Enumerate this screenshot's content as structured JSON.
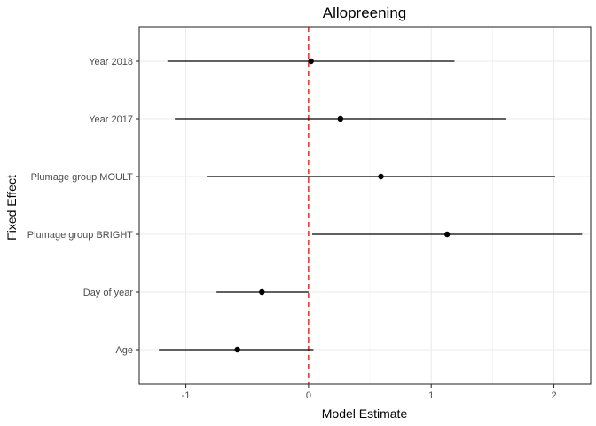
{
  "chart_data": {
    "type": "scatter",
    "title": "Allopreening",
    "xlabel": "Model Estimate",
    "ylabel": "Fixed Effect",
    "xlim": [
      -1.38,
      2.3
    ],
    "x_ticks": [
      -1,
      0,
      1,
      2
    ],
    "x_tick_labels": [
      "-1",
      "0",
      "1",
      "2"
    ],
    "reference_line": {
      "x": 0,
      "color": "#ff0000",
      "style": "dashed"
    },
    "grid": true,
    "legend": "none",
    "categories": [
      "Year 2018",
      "Year 2017",
      "Plumage group MOULT",
      "Plumage group BRIGHT",
      "Day of year",
      "Age"
    ],
    "series": [
      {
        "estimates": [
          0.02,
          0.26,
          0.59,
          1.13,
          -0.38,
          -0.58
        ],
        "lower": [
          -1.15,
          -1.09,
          -0.83,
          0.03,
          -0.75,
          -1.22
        ],
        "upper": [
          1.19,
          1.61,
          2.01,
          2.23,
          0.0,
          0.04
        ]
      }
    ]
  }
}
